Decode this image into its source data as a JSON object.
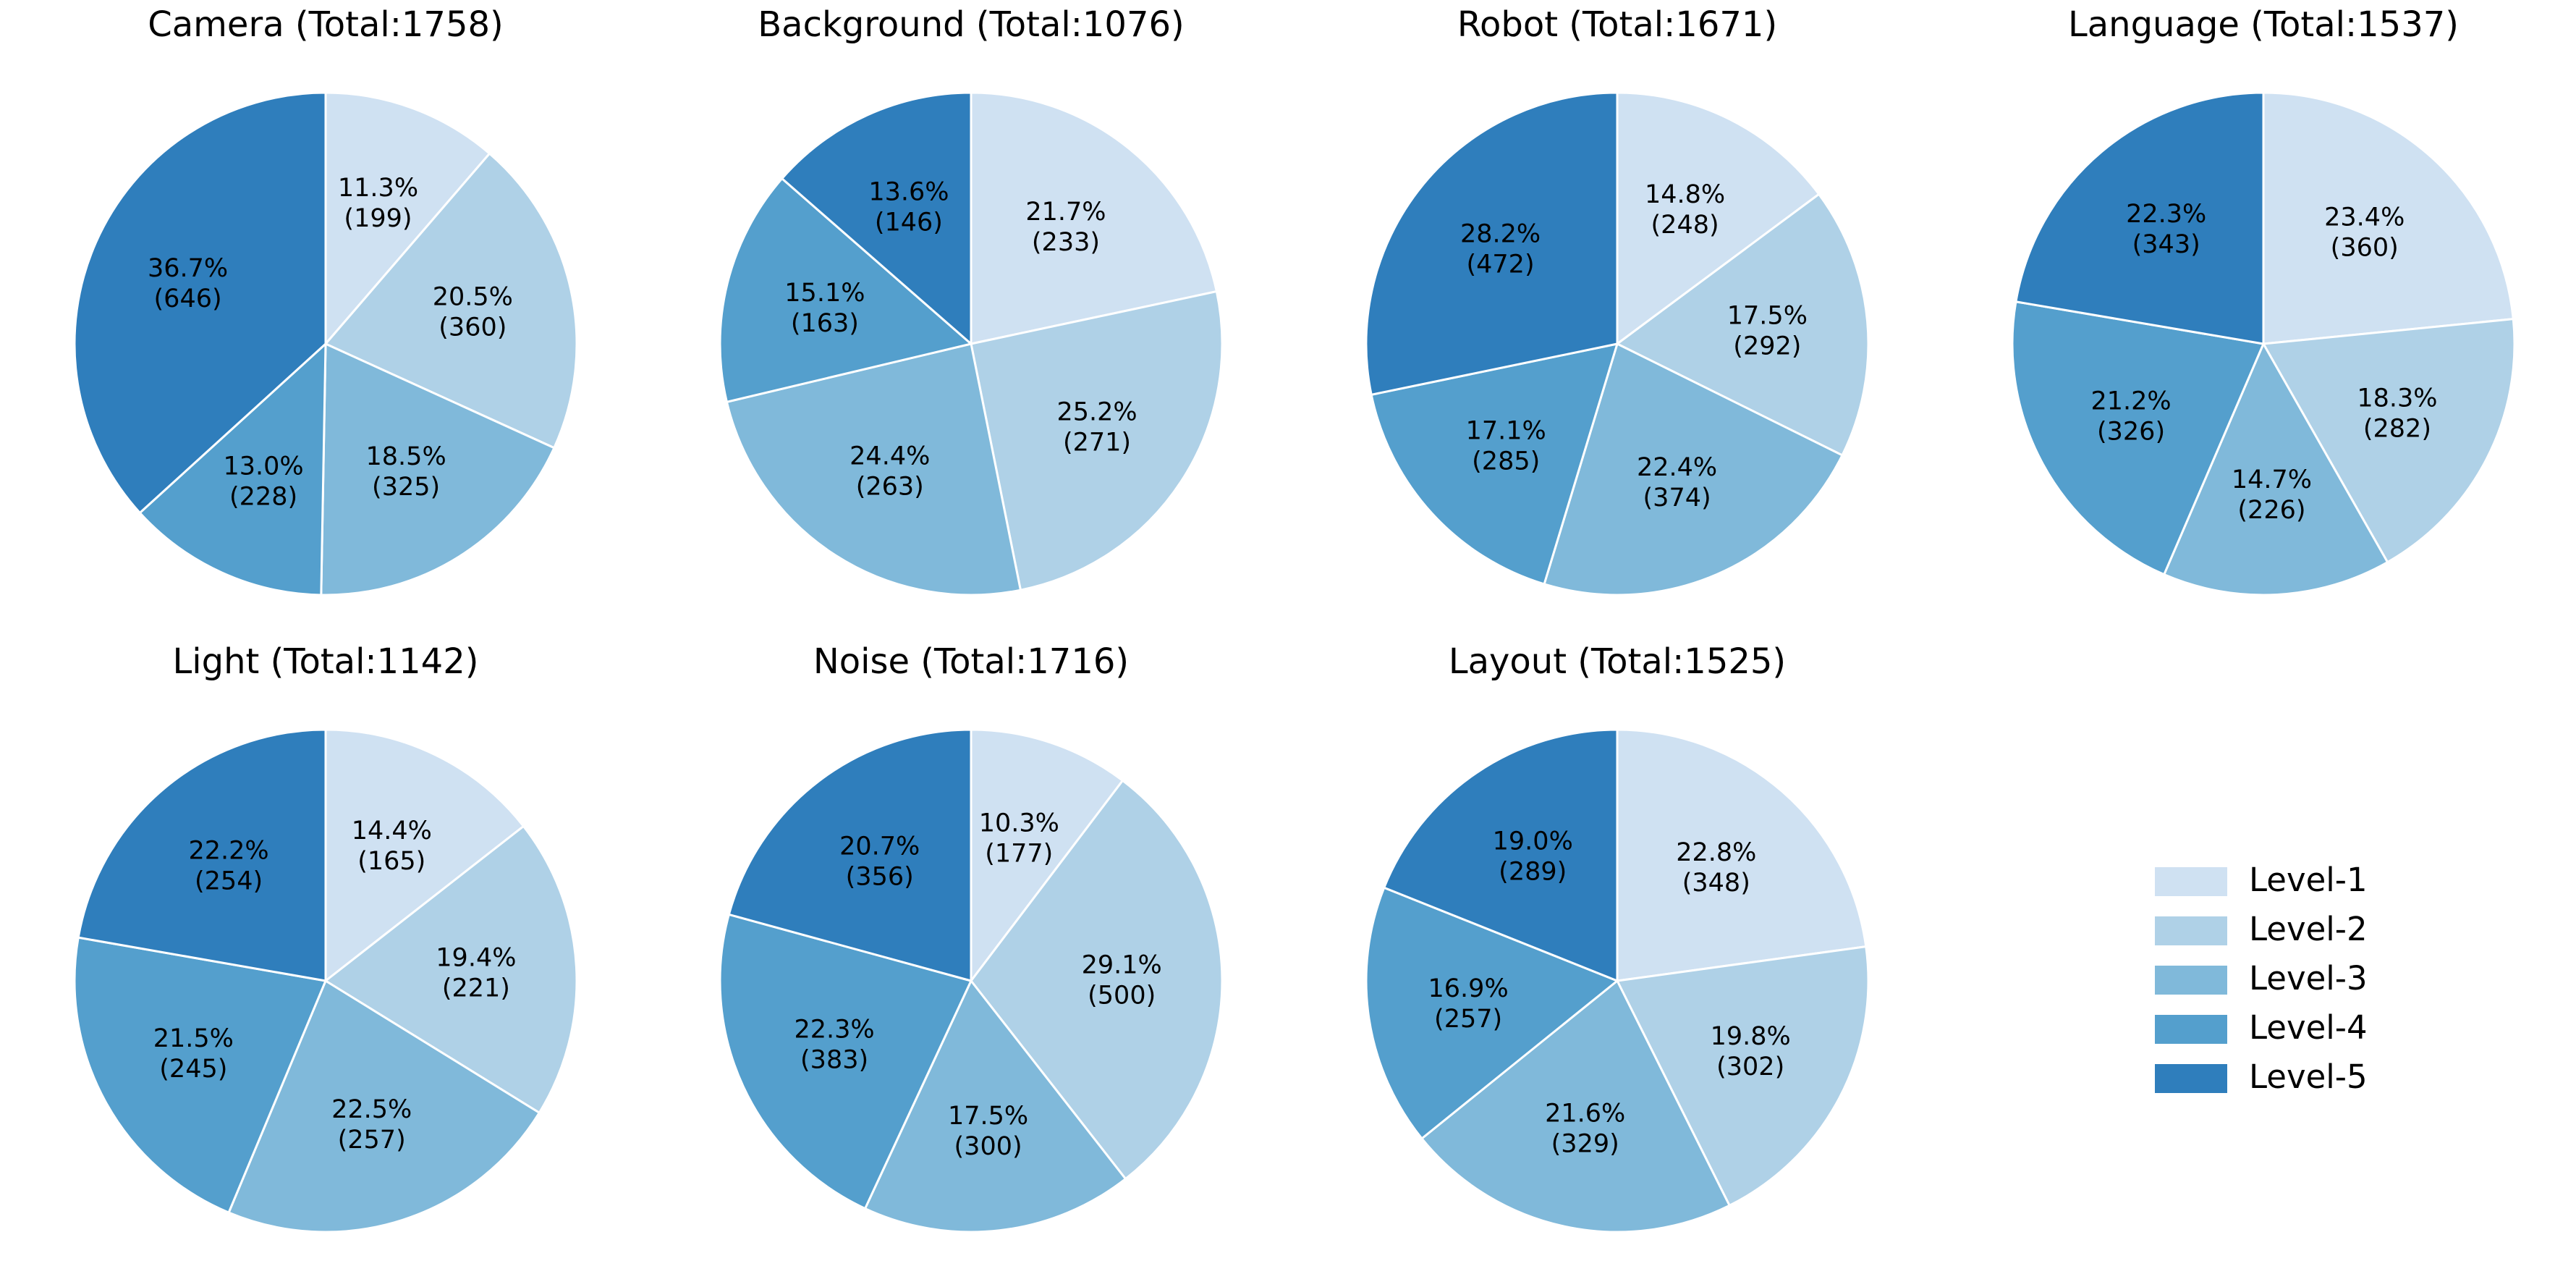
{
  "colors": {
    "Level-1": "#cfe1f2",
    "Level-2": "#afd1e7",
    "Level-3": "#80b9da",
    "Level-4": "#549fcd",
    "Level-5": "#2f7ebc"
  },
  "legend": {
    "placement": "right",
    "items": [
      "Level-1",
      "Level-2",
      "Level-3",
      "Level-4",
      "Level-5"
    ]
  },
  "chart_data": [
    {
      "type": "pie",
      "title": "Camera (Total:1758)",
      "labels": [
        "Level-1",
        "Level-2",
        "Level-3",
        "Level-4",
        "Level-5"
      ],
      "values": [
        199,
        360,
        325,
        228,
        646
      ],
      "value_labels": [
        "11.3%\n(199)",
        "20.5%\n(360)",
        "18.5%\n(325)",
        "13.0%\n(228)",
        "36.7%\n(646)"
      ]
    },
    {
      "type": "pie",
      "title": "Background (Total:1076)",
      "labels": [
        "Level-1",
        "Level-2",
        "Level-3",
        "Level-4",
        "Level-5"
      ],
      "values": [
        233,
        271,
        263,
        163,
        146
      ],
      "value_labels": [
        "21.7%\n(233)",
        "25.2%\n(271)",
        "24.4%\n(263)",
        "15.1%\n(163)",
        "13.6%\n(146)"
      ]
    },
    {
      "type": "pie",
      "title": "Robot (Total:1671)",
      "labels": [
        "Level-1",
        "Level-2",
        "Level-3",
        "Level-4",
        "Level-5"
      ],
      "values": [
        248,
        292,
        374,
        285,
        472
      ],
      "value_labels": [
        "14.8%\n(248)",
        "17.5%\n(292)",
        "22.4%\n(374)",
        "17.1%\n(285)",
        "28.2%\n(472)"
      ]
    },
    {
      "type": "pie",
      "title": "Language (Total:1537)",
      "labels": [
        "Level-1",
        "Level-2",
        "Level-3",
        "Level-4",
        "Level-5"
      ],
      "values": [
        360,
        282,
        226,
        326,
        343
      ],
      "value_labels": [
        "23.4%\n(360)",
        "18.3%\n(282)",
        "14.7%\n(226)",
        "21.2%\n(326)",
        "22.3%\n(343)"
      ]
    },
    {
      "type": "pie",
      "title": "Light (Total:1142)",
      "labels": [
        "Level-1",
        "Level-2",
        "Level-3",
        "Level-4",
        "Level-5"
      ],
      "values": [
        165,
        221,
        257,
        245,
        254
      ],
      "value_labels": [
        "14.4%\n(165)",
        "19.4%\n(221)",
        "22.5%\n(257)",
        "21.5%\n(245)",
        "22.2%\n(254)"
      ]
    },
    {
      "type": "pie",
      "title": "Noise (Total:1716)",
      "labels": [
        "Level-1",
        "Level-2",
        "Level-3",
        "Level-4",
        "Level-5"
      ],
      "values": [
        177,
        500,
        300,
        383,
        356
      ],
      "value_labels": [
        "10.3%\n(177)",
        "29.1%\n(500)",
        "17.5%\n(300)",
        "22.3%\n(383)",
        "20.7%\n(356)"
      ]
    },
    {
      "type": "pie",
      "title": "Layout (Total:1525)",
      "labels": [
        "Level-1",
        "Level-2",
        "Level-3",
        "Level-4",
        "Level-5"
      ],
      "values": [
        348,
        302,
        329,
        257,
        289
      ],
      "value_labels": [
        "22.8%\n(348)",
        "19.8%\n(302)",
        "21.6%\n(329)",
        "16.9%\n(257)",
        "19.0%\n(289)"
      ]
    }
  ]
}
